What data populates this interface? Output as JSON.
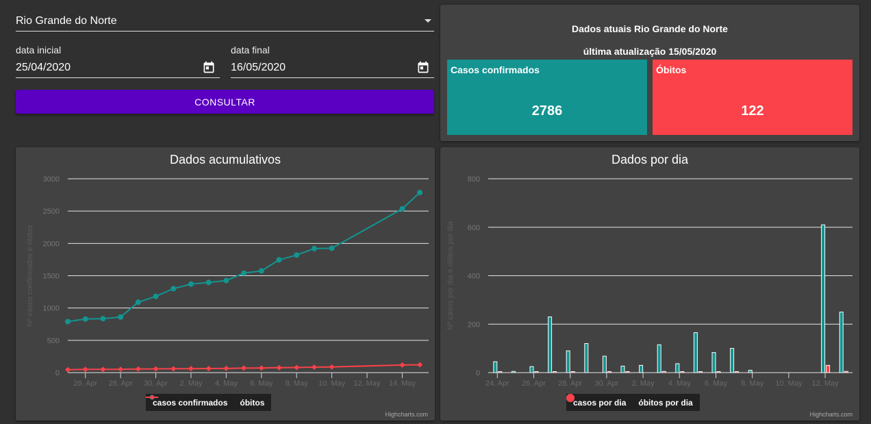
{
  "filter": {
    "state_value": "Rio Grande do Norte",
    "start_label": "data inicial",
    "start_value": "25/04/2020",
    "end_label": "data final",
    "end_value": "16/05/2020",
    "query_button": "CONSULTAR"
  },
  "summary": {
    "title": "Dados atuais Rio Grande do Norte",
    "updated": "última atualização 15/05/2020",
    "cases_label": "Casos confirmados",
    "cases_value": "2786",
    "deaths_label": "Óbitos",
    "deaths_value": "122",
    "cases_color": "#139491",
    "deaths_color": "#fb4149"
  },
  "chart_data": [
    {
      "type": "line",
      "title": "Dados acumulativos",
      "ylabel": "Nº casos confirmados e óbitos",
      "ylim": [
        0,
        3000
      ],
      "yticks": [
        "0",
        "500",
        "1000",
        "1500",
        "2000",
        "2500",
        "3000"
      ],
      "x_day_start": 0,
      "x_day_end": 20.5,
      "xticks": [
        {
          "day": 1,
          "label": "26. Apr"
        },
        {
          "day": 3,
          "label": "28. Apr"
        },
        {
          "day": 5,
          "label": "30. Apr"
        },
        {
          "day": 7,
          "label": "2. May"
        },
        {
          "day": 9,
          "label": "4. May"
        },
        {
          "day": 11,
          "label": "6. May"
        },
        {
          "day": 13,
          "label": "8. May"
        },
        {
          "day": 15,
          "label": "10. May"
        },
        {
          "day": 17,
          "label": "12. May"
        },
        {
          "day": 19,
          "label": "14. May"
        }
      ],
      "series": [
        {
          "name": "casos confirmados",
          "color": "#139491",
          "marker": "circle",
          "points": [
            [
              0,
              790
            ],
            [
              1,
              830
            ],
            [
              2,
              835
            ],
            [
              3,
              860
            ],
            [
              4,
              1090
            ],
            [
              5,
              1180
            ],
            [
              6,
              1300
            ],
            [
              7,
              1370
            ],
            [
              8,
              1395
            ],
            [
              9,
              1425
            ],
            [
              10,
              1540
            ],
            [
              11,
              1575
            ],
            [
              12,
              1745
            ],
            [
              13,
              1820
            ],
            [
              14,
              1920
            ],
            [
              15,
              1925
            ],
            [
              19,
              2535
            ],
            [
              20,
              2786
            ]
          ]
        },
        {
          "name": "óbitos",
          "color": "#fb4149",
          "marker": "diamond",
          "points": [
            [
              0,
              45
            ],
            [
              1,
              50
            ],
            [
              2,
              50
            ],
            [
              3,
              52
            ],
            [
              4,
              56
            ],
            [
              5,
              58
            ],
            [
              6,
              60
            ],
            [
              7,
              62
            ],
            [
              8,
              64
            ],
            [
              9,
              65
            ],
            [
              10,
              70
            ],
            [
              11,
              72
            ],
            [
              12,
              76
            ],
            [
              13,
              80
            ],
            [
              14,
              85
            ],
            [
              15,
              88
            ],
            [
              19,
              118
            ],
            [
              20,
              122
            ]
          ]
        }
      ]
    },
    {
      "type": "bar",
      "title": "Dados por dia",
      "ylabel": "Nº casos por dia e óbitos por dia",
      "ylim": [
        0,
        800
      ],
      "yticks": [
        "0",
        "200",
        "400",
        "600",
        "800"
      ],
      "x_day_start": -0.5,
      "x_day_end": 19.5,
      "xticks": [
        {
          "day": 0,
          "label": "24. Apr"
        },
        {
          "day": 2,
          "label": "26. Apr"
        },
        {
          "day": 4,
          "label": "28. Apr"
        },
        {
          "day": 6,
          "label": "30. Apr"
        },
        {
          "day": 8,
          "label": "2. May"
        },
        {
          "day": 10,
          "label": "4. May"
        },
        {
          "day": 12,
          "label": "6. May"
        },
        {
          "day": 14,
          "label": "8. May"
        },
        {
          "day": 16,
          "label": "10. May"
        },
        {
          "day": 18,
          "label": "12. May"
        }
      ],
      "series": [
        {
          "name": "casos por dia",
          "color": "#139491",
          "points": [
            [
              0,
              45
            ],
            [
              1,
              5
            ],
            [
              2,
              25
            ],
            [
              3,
              230
            ],
            [
              4,
              90
            ],
            [
              5,
              120
            ],
            [
              6,
              68
            ],
            [
              7,
              27
            ],
            [
              8,
              30
            ],
            [
              9,
              115
            ],
            [
              10,
              37
            ],
            [
              11,
              165
            ],
            [
              12,
              83
            ],
            [
              13,
              100
            ],
            [
              14,
              10
            ],
            [
              15,
              0
            ],
            [
              16,
              0
            ],
            [
              17,
              0
            ],
            [
              18,
              610
            ],
            [
              19,
              250
            ]
          ]
        },
        {
          "name": "óbitos por dia",
          "color": "#fb4149",
          "points": [
            [
              0,
              2
            ],
            [
              1,
              0
            ],
            [
              2,
              2
            ],
            [
              3,
              4
            ],
            [
              4,
              2
            ],
            [
              5,
              0
            ],
            [
              6,
              2
            ],
            [
              7,
              2
            ],
            [
              8,
              0
            ],
            [
              9,
              5
            ],
            [
              10,
              3
            ],
            [
              11,
              2
            ],
            [
              12,
              4
            ],
            [
              13,
              4
            ],
            [
              14,
              0
            ],
            [
              15,
              0
            ],
            [
              16,
              0
            ],
            [
              17,
              0
            ],
            [
              18,
              30
            ],
            [
              19,
              5
            ]
          ]
        }
      ]
    }
  ],
  "credits": "Highcharts.com"
}
